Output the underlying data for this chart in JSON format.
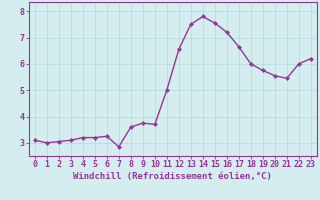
{
  "x": [
    0,
    1,
    2,
    3,
    4,
    5,
    6,
    7,
    8,
    9,
    10,
    11,
    12,
    13,
    14,
    15,
    16,
    17,
    18,
    19,
    20,
    21,
    22,
    23
  ],
  "y": [
    3.1,
    3.0,
    3.05,
    3.1,
    3.2,
    3.2,
    3.25,
    2.85,
    3.6,
    3.75,
    3.7,
    5.0,
    6.55,
    7.5,
    7.8,
    7.55,
    7.2,
    6.65,
    6.0,
    5.75,
    5.55,
    5.45,
    6.0,
    6.2
  ],
  "line_color": "#993399",
  "marker": "D",
  "marker_size": 2.2,
  "linewidth": 1.0,
  "xlabel": "Windchill (Refroidissement éolien,°C)",
  "xlabel_fontsize": 6.5,
  "ylim": [
    2.5,
    8.35
  ],
  "xlim": [
    -0.5,
    23.5
  ],
  "yticks": [
    3,
    4,
    5,
    6,
    7,
    8
  ],
  "xticks": [
    0,
    1,
    2,
    3,
    4,
    5,
    6,
    7,
    8,
    9,
    10,
    11,
    12,
    13,
    14,
    15,
    16,
    17,
    18,
    19,
    20,
    21,
    22,
    23
  ],
  "tick_fontsize": 6.0,
  "background_color": "#d4eef0",
  "grid_color": "#b8dde0",
  "grid_linewidth": 0.6,
  "spine_color": "#993399"
}
